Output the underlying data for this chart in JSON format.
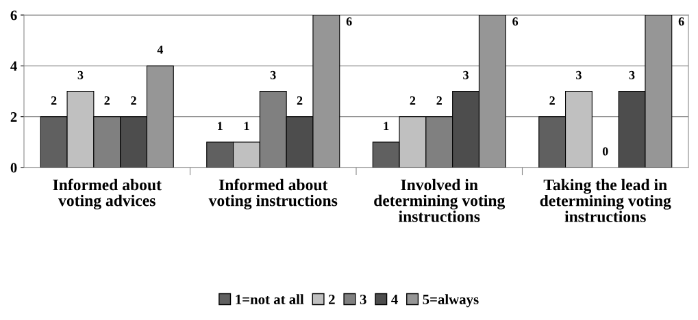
{
  "chart_data": {
    "type": "bar",
    "categories": [
      "Informed about voting advices",
      "Informed about voting instructions",
      "Involved in determining voting instructions",
      "Taking the lead in determining voting instructions"
    ],
    "series": [
      {
        "name": "1=not at all",
        "color": "#606060",
        "values": [
          2,
          1,
          1,
          2
        ]
      },
      {
        "name": "2",
        "color": "#c0c0c0",
        "values": [
          3,
          1,
          2,
          3
        ]
      },
      {
        "name": "3",
        "color": "#808080",
        "values": [
          2,
          3,
          2,
          0
        ]
      },
      {
        "name": "4",
        "color": "#4d4d4d",
        "values": [
          2,
          2,
          3,
          3
        ]
      },
      {
        "name": "5=always",
        "color": "#969696",
        "values": [
          4,
          6,
          6,
          6
        ]
      }
    ],
    "ylim": [
      0,
      6
    ],
    "yticks": [
      0,
      2,
      4,
      6
    ],
    "grid": "y",
    "legend": "bottom",
    "data_labels": true
  }
}
